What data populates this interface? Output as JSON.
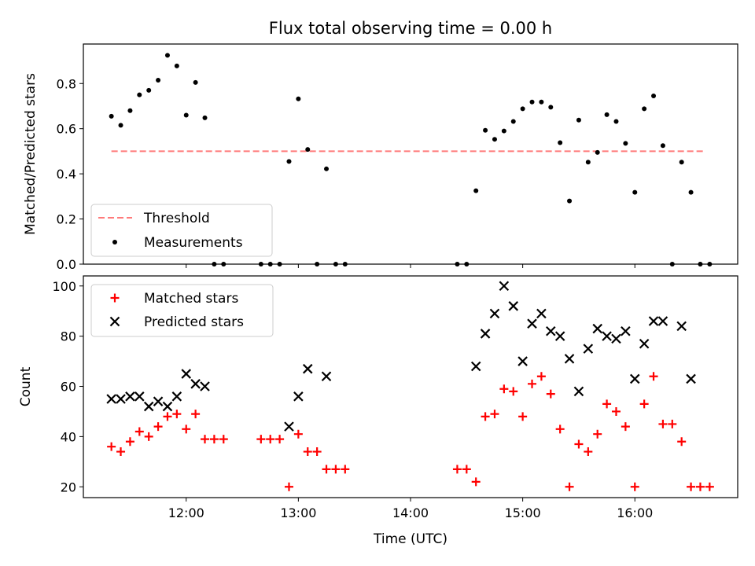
{
  "chart_data": [
    {
      "type": "scatter",
      "title": "Flux total observing time = 0.00 h",
      "xlabel": "",
      "ylabel": "Matched/Predicted stars",
      "xlim": [
        "11:05",
        "16:55"
      ],
      "ylim": [
        0,
        0.975
      ],
      "yticks": [
        0.0,
        0.2,
        0.4,
        0.6,
        0.8
      ],
      "xticks": [
        "12:00",
        "13:00",
        "14:00",
        "15:00",
        "16:00"
      ],
      "legend_position": "lower-left",
      "colors": {
        "threshold": "#ff7a7a",
        "measurements": "#000000"
      },
      "series": [
        {
          "name": "Threshold",
          "style": "dashed-line",
          "points": [
            [
              "11:20",
              0.5
            ],
            [
              "16:38",
              0.5
            ]
          ]
        },
        {
          "name": "Measurements",
          "style": "dot",
          "points": [
            [
              "11:20",
              0.655
            ],
            [
              "11:25",
              0.615
            ],
            [
              "11:30",
              0.68
            ],
            [
              "11:35",
              0.75
            ],
            [
              "11:40",
              0.77
            ],
            [
              "11:45",
              0.815
            ],
            [
              "11:50",
              0.925
            ],
            [
              "11:55",
              0.878
            ],
            [
              "12:00",
              0.66
            ],
            [
              "12:05",
              0.805
            ],
            [
              "12:10",
              0.648
            ],
            [
              "12:15",
              0.0
            ],
            [
              "12:20",
              0.0
            ],
            [
              "12:40",
              0.0
            ],
            [
              "12:45",
              0.0
            ],
            [
              "12:50",
              0.0
            ],
            [
              "12:55",
              0.455
            ],
            [
              "13:00",
              0.732
            ],
            [
              "13:05",
              0.508
            ],
            [
              "13:10",
              0.0
            ],
            [
              "13:15",
              0.422
            ],
            [
              "13:20",
              0.0
            ],
            [
              "13:25",
              0.0
            ],
            [
              "14:25",
              0.0
            ],
            [
              "14:30",
              0.0
            ],
            [
              "14:35",
              0.325
            ],
            [
              "14:40",
              0.593
            ],
            [
              "14:45",
              0.553
            ],
            [
              "14:50",
              0.59
            ],
            [
              "14:55",
              0.632
            ],
            [
              "15:00",
              0.688
            ],
            [
              "15:05",
              0.718
            ],
            [
              "15:10",
              0.718
            ],
            [
              "15:15",
              0.695
            ],
            [
              "15:20",
              0.538
            ],
            [
              "15:25",
              0.28
            ],
            [
              "15:30",
              0.638
            ],
            [
              "15:35",
              0.452
            ],
            [
              "15:40",
              0.495
            ],
            [
              "15:45",
              0.662
            ],
            [
              "15:50",
              0.632
            ],
            [
              "15:55",
              0.535
            ],
            [
              "16:00",
              0.318
            ],
            [
              "16:05",
              0.688
            ],
            [
              "16:10",
              0.745
            ],
            [
              "16:15",
              0.525
            ],
            [
              "16:20",
              0.0
            ],
            [
              "16:25",
              0.452
            ],
            [
              "16:30",
              0.318
            ],
            [
              "16:35",
              0.0
            ],
            [
              "16:40",
              0.0
            ]
          ]
        }
      ]
    },
    {
      "type": "scatter",
      "title": "",
      "xlabel": "Time (UTC)",
      "ylabel": "Count",
      "xlim": [
        "11:05",
        "16:55"
      ],
      "ylim": [
        15.7,
        104
      ],
      "yticks": [
        20,
        40,
        60,
        80,
        100
      ],
      "xticks": [
        "12:00",
        "13:00",
        "14:00",
        "15:00",
        "16:00"
      ],
      "legend_position": "upper-left",
      "colors": {
        "matched": "#ff0000",
        "predicted": "#000000"
      },
      "series": [
        {
          "name": "Matched stars",
          "style": "plus",
          "points": [
            [
              "11:20",
              36
            ],
            [
              "11:25",
              34
            ],
            [
              "11:30",
              38
            ],
            [
              "11:35",
              42
            ],
            [
              "11:40",
              40
            ],
            [
              "11:45",
              44
            ],
            [
              "11:50",
              48
            ],
            [
              "11:55",
              49
            ],
            [
              "12:00",
              43
            ],
            [
              "12:05",
              49
            ],
            [
              "12:10",
              39
            ],
            [
              "12:15",
              39
            ],
            [
              "12:20",
              39
            ],
            [
              "12:40",
              39
            ],
            [
              "12:45",
              39
            ],
            [
              "12:50",
              39
            ],
            [
              "12:55",
              20
            ],
            [
              "13:00",
              41
            ],
            [
              "13:05",
              34
            ],
            [
              "13:10",
              34
            ],
            [
              "13:15",
              27
            ],
            [
              "13:20",
              27
            ],
            [
              "13:25",
              27
            ],
            [
              "14:25",
              27
            ],
            [
              "14:30",
              27
            ],
            [
              "14:35",
              22
            ],
            [
              "14:40",
              48
            ],
            [
              "14:45",
              49
            ],
            [
              "14:50",
              59
            ],
            [
              "14:55",
              58
            ],
            [
              "15:00",
              48
            ],
            [
              "15:05",
              61
            ],
            [
              "15:10",
              64
            ],
            [
              "15:15",
              57
            ],
            [
              "15:20",
              43
            ],
            [
              "15:25",
              20
            ],
            [
              "15:30",
              37
            ],
            [
              "15:35",
              34
            ],
            [
              "15:40",
              41
            ],
            [
              "15:45",
              53
            ],
            [
              "15:50",
              50
            ],
            [
              "15:55",
              44
            ],
            [
              "16:00",
              20
            ],
            [
              "16:05",
              53
            ],
            [
              "16:10",
              64
            ],
            [
              "16:15",
              45
            ],
            [
              "16:20",
              45
            ],
            [
              "16:25",
              38
            ],
            [
              "16:30",
              20
            ],
            [
              "16:35",
              20
            ],
            [
              "16:40",
              20
            ]
          ]
        },
        {
          "name": "Predicted stars",
          "style": "cross",
          "points": [
            [
              "11:20",
              55
            ],
            [
              "11:25",
              55
            ],
            [
              "11:30",
              56
            ],
            [
              "11:35",
              56
            ],
            [
              "11:40",
              52
            ],
            [
              "11:45",
              54
            ],
            [
              "11:50",
              52
            ],
            [
              "11:55",
              56
            ],
            [
              "12:00",
              65
            ],
            [
              "12:05",
              61
            ],
            [
              "12:10",
              60
            ],
            [
              "12:55",
              44
            ],
            [
              "13:00",
              56
            ],
            [
              "13:05",
              67
            ],
            [
              "13:15",
              64
            ],
            [
              "14:35",
              68
            ],
            [
              "14:40",
              81
            ],
            [
              "14:45",
              89
            ],
            [
              "14:50",
              100
            ],
            [
              "14:55",
              92
            ],
            [
              "15:00",
              70
            ],
            [
              "15:05",
              85
            ],
            [
              "15:10",
              89
            ],
            [
              "15:15",
              82
            ],
            [
              "15:20",
              80
            ],
            [
              "15:25",
              71
            ],
            [
              "15:30",
              58
            ],
            [
              "15:35",
              75
            ],
            [
              "15:40",
              83
            ],
            [
              "15:45",
              80
            ],
            [
              "15:50",
              79
            ],
            [
              "15:55",
              82
            ],
            [
              "16:00",
              63
            ],
            [
              "16:05",
              77
            ],
            [
              "16:10",
              86
            ],
            [
              "16:15",
              86
            ],
            [
              "16:25",
              84
            ],
            [
              "16:30",
              63
            ]
          ]
        }
      ]
    }
  ]
}
